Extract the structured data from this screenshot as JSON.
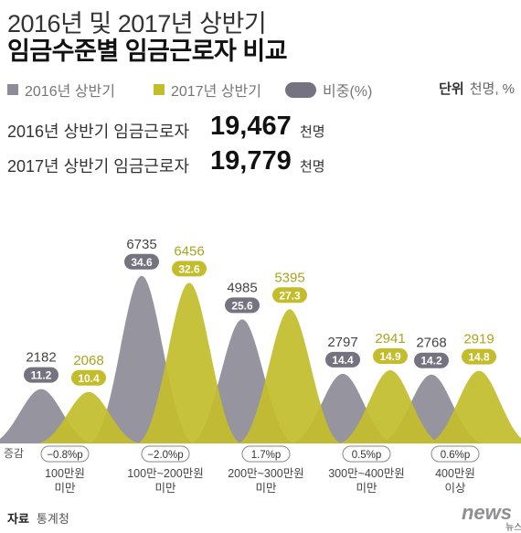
{
  "header": {
    "title_line1": "2016년 및 2017년 상반기",
    "title_line2": "임금수준별 임금근로자 비교"
  },
  "legend": {
    "item1": "2016년 상반기",
    "item2": "2017년 상반기",
    "item3": "비중(%)",
    "unit_label": "단위",
    "unit_value": "천명, %"
  },
  "totals": [
    {
      "label": "2016년 상반기 임금근로자",
      "value": "19,467",
      "unit": "천명"
    },
    {
      "label": "2017년 상반기 임금근로자",
      "value": "19,779",
      "unit": "천명"
    }
  ],
  "colors": {
    "y2016": "#8e8c98",
    "y2017": "#c3bd2c",
    "pill": "#757380",
    "change_border": "#888888"
  },
  "chart_data": {
    "type": "area",
    "categories": [
      "100만원\n미만",
      "100만~200만원\n미만",
      "200만~300만원\n미만",
      "300만~400만원\n미만",
      "400만원\n이상"
    ],
    "series": [
      {
        "name": "2016년 상반기",
        "values": [
          2182,
          6735,
          4985,
          2797,
          2768
        ],
        "share": [
          "11.2",
          "34.6",
          "25.6",
          "14.4",
          "14.2"
        ]
      },
      {
        "name": "2017년 상반기",
        "values": [
          2068,
          6456,
          5395,
          2941,
          2919
        ],
        "share": [
          "10.4",
          "32.6",
          "27.3",
          "14.9",
          "14.8"
        ]
      }
    ],
    "change_label": "증감",
    "changes": [
      "−0.8%p",
      "−2.0%p",
      "1.7%p",
      "0.5%p",
      "0.6%p"
    ],
    "ylim": [
      0,
      7000
    ]
  },
  "footer": {
    "source_label": "자료",
    "source_value": "통계청",
    "logo": "news",
    "logo_sub": "뉴스1"
  }
}
